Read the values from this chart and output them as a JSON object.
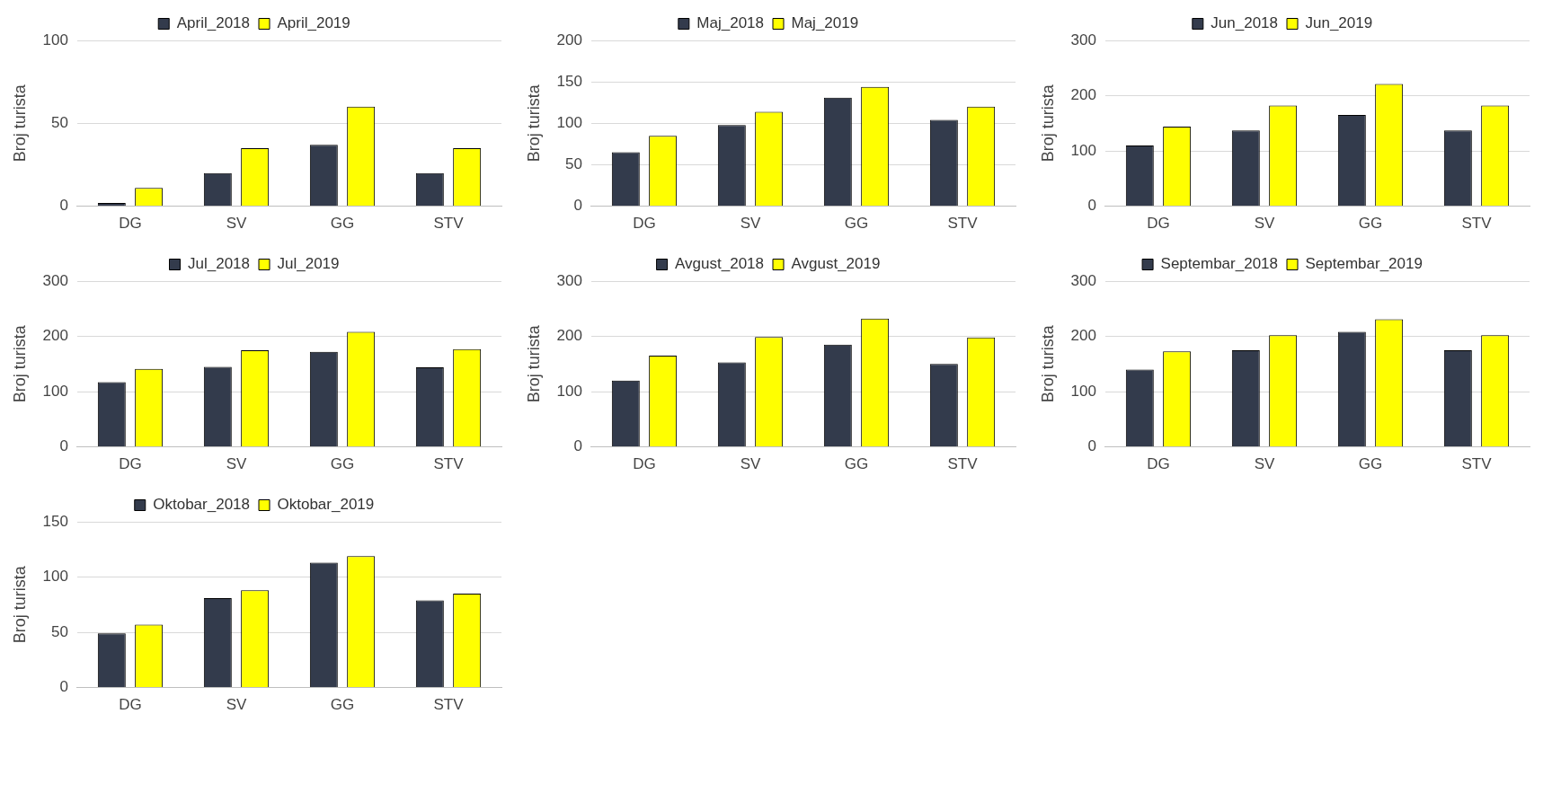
{
  "chart_data": [
    {
      "type": "bar",
      "categories": [
        "DG",
        "SV",
        "GG",
        "STV"
      ],
      "ylabel": "Broj turista",
      "ylim": [
        0,
        100
      ],
      "yticks": [
        0,
        50,
        100
      ],
      "grid": "y",
      "legend": "top",
      "series": [
        {
          "name": "April_2018",
          "color": "#333b4c",
          "values": [
            2,
            20,
            37,
            20
          ]
        },
        {
          "name": "April_2019",
          "color": "#ffff00",
          "values": [
            11,
            35,
            60,
            35
          ]
        }
      ]
    },
    {
      "type": "bar",
      "categories": [
        "DG",
        "SV",
        "GG",
        "STV"
      ],
      "ylabel": "Broj turista",
      "ylim": [
        0,
        200
      ],
      "yticks": [
        0,
        50,
        100,
        150,
        200
      ],
      "grid": "y",
      "legend": "top",
      "series": [
        {
          "name": "Maj_2018",
          "color": "#333b4c",
          "values": [
            65,
            98,
            131,
            104
          ]
        },
        {
          "name": "Maj_2019",
          "color": "#ffff00",
          "values": [
            85,
            114,
            144,
            120
          ]
        }
      ]
    },
    {
      "type": "bar",
      "categories": [
        "DG",
        "SV",
        "GG",
        "STV"
      ],
      "ylabel": "Broj turista",
      "ylim": [
        0,
        300
      ],
      "yticks": [
        0,
        100,
        200,
        300
      ],
      "grid": "y",
      "legend": "top",
      "series": [
        {
          "name": "Jun_2018",
          "color": "#333b4c",
          "values": [
            110,
            137,
            165,
            137
          ]
        },
        {
          "name": "Jun_2019",
          "color": "#ffff00",
          "values": [
            144,
            182,
            221,
            182
          ]
        }
      ]
    },
    {
      "type": "bar",
      "categories": [
        "DG",
        "SV",
        "GG",
        "STV"
      ],
      "ylabel": "Broj turista",
      "ylim": [
        0,
        300
      ],
      "yticks": [
        0,
        100,
        200,
        300
      ],
      "grid": "y",
      "legend": "top",
      "series": [
        {
          "name": "Jul_2018",
          "color": "#333b4c",
          "values": [
            117,
            145,
            172,
            144
          ]
        },
        {
          "name": "Jul_2019",
          "color": "#ffff00",
          "values": [
            141,
            175,
            208,
            177
          ]
        }
      ]
    },
    {
      "type": "bar",
      "categories": [
        "DG",
        "SV",
        "GG",
        "STV"
      ],
      "ylabel": "Broj turista",
      "ylim": [
        0,
        300
      ],
      "yticks": [
        0,
        100,
        200,
        300
      ],
      "grid": "y",
      "legend": "top",
      "series": [
        {
          "name": "Avgust_2018",
          "color": "#333b4c",
          "values": [
            120,
            153,
            185,
            150
          ]
        },
        {
          "name": "Avgust_2019",
          "color": "#ffff00",
          "values": [
            165,
            199,
            232,
            198
          ]
        }
      ]
    },
    {
      "type": "bar",
      "categories": [
        "DG",
        "SV",
        "GG",
        "STV"
      ],
      "ylabel": "Broj turista",
      "ylim": [
        0,
        300
      ],
      "yticks": [
        0,
        100,
        200,
        300
      ],
      "grid": "y",
      "legend": "top",
      "series": [
        {
          "name": "Septembar_2018",
          "color": "#333b4c",
          "values": [
            140,
            175,
            208,
            175
          ]
        },
        {
          "name": "Septembar_2019",
          "color": "#ffff00",
          "values": [
            173,
            202,
            231,
            202
          ]
        }
      ]
    },
    {
      "type": "bar",
      "categories": [
        "DG",
        "SV",
        "GG",
        "STV"
      ],
      "ylabel": "Broj turista",
      "ylim": [
        0,
        150
      ],
      "yticks": [
        0,
        50,
        100,
        150
      ],
      "grid": "y",
      "legend": "top",
      "series": [
        {
          "name": "Oktobar_2018",
          "color": "#333b4c",
          "values": [
            49,
            81,
            113,
            79
          ]
        },
        {
          "name": "Oktobar_2019",
          "color": "#ffff00",
          "values": [
            57,
            88,
            119,
            85
          ]
        }
      ]
    }
  ]
}
